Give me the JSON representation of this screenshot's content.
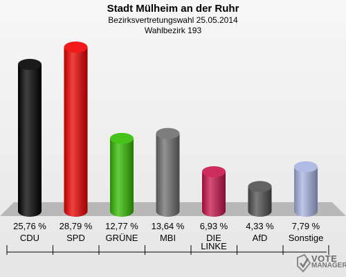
{
  "header": {
    "title": "Stadt Mülheim an der Ruhr",
    "subtitle1": "Bezirksvertretungswahl 25.05.2014",
    "subtitle2": "Wahlbezirk 193"
  },
  "chart_data": {
    "type": "bar",
    "title": "Stadt Mülheim an der Ruhr",
    "subtitle": "Bezirksvertretungswahl 25.05.2014 / Wahlbezirk 193",
    "categories": [
      "CDU",
      "SPD",
      "GRÜNE",
      "MBI",
      "DIE LINKE",
      "AfD",
      "Sonstige"
    ],
    "category_lines": [
      [
        "CDU"
      ],
      [
        "SPD"
      ],
      [
        "GRÜNE"
      ],
      [
        "MBI"
      ],
      [
        "DIE",
        "LINKE"
      ],
      [
        "AfD"
      ],
      [
        "Sonstige"
      ]
    ],
    "values": [
      25.76,
      28.79,
      12.77,
      13.64,
      6.93,
      4.33,
      7.79
    ],
    "value_labels": [
      "25,76 %",
      "28,79 %",
      "12,77 %",
      "13,64 %",
      "6,93 %",
      "4,33 %",
      "7,79 %"
    ],
    "colors": [
      "#000000",
      "#ee0000",
      "#33bb00",
      "#6e6e6e",
      "#c8144b",
      "#505050",
      "#a7b4e0"
    ],
    "xlabel": "",
    "ylabel": "",
    "ylim": [
      0,
      30
    ],
    "grid": false,
    "legend": "none"
  },
  "logo": {
    "line1": "VOTE",
    "line2": "MANAGER"
  }
}
